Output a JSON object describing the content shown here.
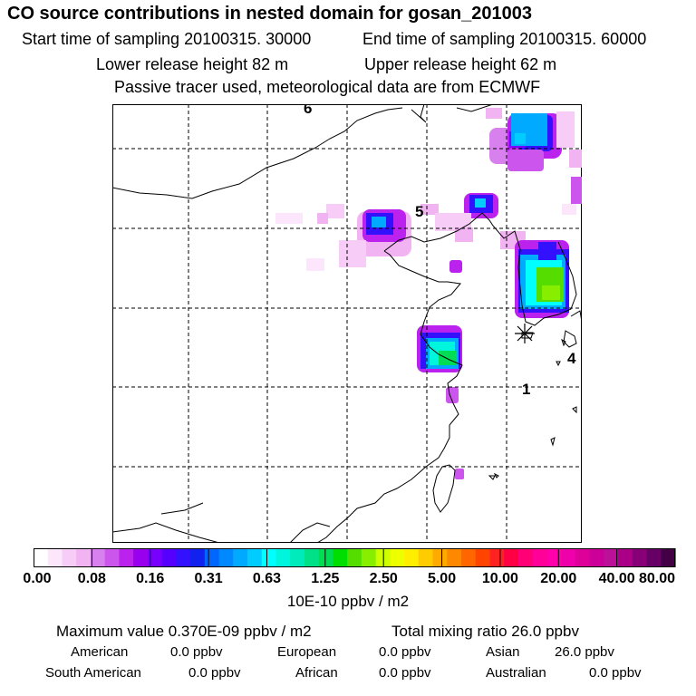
{
  "header": {
    "title": "CO  source contributions in nested domain for gosan_201003",
    "start_label": "Start time of sampling 20100315. 30000",
    "end_label": "End time of sampling 20100315. 60000",
    "lower_release": "Lower release height   82 m",
    "upper_release": "Upper release height   62 m",
    "tracer_note": "Passive tracer used, meteorological data are from ECMWF"
  },
  "map": {
    "markers": [
      "6",
      "5",
      "4",
      "1"
    ],
    "receptor": "receptor-star"
  },
  "colorbar": {
    "colors": [
      "#ffffff",
      "#fbe6fb",
      "#f7ccf7",
      "#f2b3f2",
      "#d880ee",
      "#cc55ee",
      "#bb22ee",
      "#9900ee",
      "#7700ff",
      "#5500ff",
      "#3311ff",
      "#1122ee",
      "#0066ff",
      "#0088ff",
      "#00aaff",
      "#00ccff",
      "#00ffff",
      "#00f5dd",
      "#00ebbb",
      "#00e188",
      "#00dd55",
      "#00dd00",
      "#55dd00",
      "#88ee00",
      "#ccff00",
      "#eeff00",
      "#ffee00",
      "#ffcc00",
      "#ffaa00",
      "#ff8800",
      "#ff6600",
      "#ff4400",
      "#ff2222",
      "#ff0044",
      "#ff0077",
      "#ff0099",
      "#ff00aa",
      "#ee00aa",
      "#dd0099",
      "#cc0099",
      "#bb1199",
      "#aa0088",
      "#880077",
      "#660066",
      "#440044"
    ],
    "tick_labels": [
      "0.00",
      "0.08",
      "0.16",
      "0.31",
      "0.63",
      "1.25",
      "2.50",
      "5.00",
      "10.00",
      "20.00",
      "40.00",
      "80.00"
    ],
    "units": "10E-10 ppbv / m2"
  },
  "footer": {
    "max_value": "Maximum value  0.370E-09 ppbv / m2",
    "total_mixing": "Total mixing ratio       26.0 ppbv",
    "american": "American",
    "american_val": "0.0 ppbv",
    "european": "European",
    "european_val": "0.0 ppbv",
    "asian": "Asian",
    "asian_val": "26.0 ppbv",
    "south_american": "South American",
    "south_american_val": "0.0 ppbv",
    "african": "African",
    "african_val": "0.0 ppbv",
    "australian": "Australian",
    "australian_val": "0.0 ppbv"
  }
}
